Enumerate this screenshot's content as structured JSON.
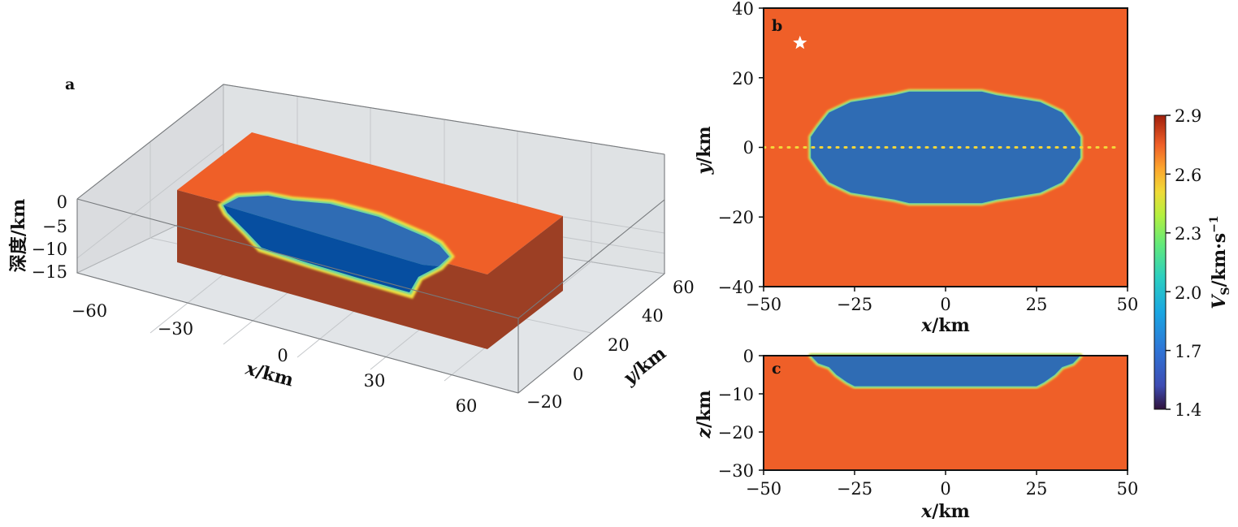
{
  "chart_data": [
    {
      "panel": "a",
      "type": "surface-3d",
      "panel_label": "a",
      "xlabel": {
        "var": "x",
        "unit": "/km"
      },
      "ylabel": {
        "var": "y",
        "unit": "/km"
      },
      "zlabel": "深度/km",
      "xlim": [
        -60,
        60
      ],
      "ylim": [
        -20,
        60
      ],
      "zlim": [
        -15,
        0
      ],
      "xticks": [
        -60,
        -30,
        0,
        30,
        60
      ],
      "yticks": [
        -20,
        0,
        20,
        40,
        60
      ],
      "zticks": [
        0,
        -5,
        -10,
        -15
      ],
      "xtick_labels": [
        "−60",
        "−30",
        "0",
        "30",
        "60"
      ],
      "ytick_labels": [
        "−20",
        "0",
        "20",
        "40",
        "60"
      ],
      "ztick_labels": [
        "0",
        "−5",
        "−10",
        "−15"
      ],
      "grid": true
    },
    {
      "panel": "b",
      "type": "heatmap",
      "panel_label": "b",
      "xlabel": {
        "var": "x",
        "unit": "/km"
      },
      "ylabel": {
        "var": "y",
        "unit": "/km"
      },
      "xlim": [
        -50,
        50
      ],
      "ylim": [
        -40,
        40
      ],
      "xticks": [
        -50,
        -25,
        0,
        25,
        50
      ],
      "yticks": [
        -40,
        -20,
        0,
        20,
        40
      ],
      "xtick_labels": [
        "−50",
        "−25",
        "0",
        "25",
        "50"
      ],
      "ytick_labels": [
        "−40",
        "−20",
        "0",
        "20",
        "40"
      ],
      "background_vs": 2.8,
      "basin_vs": 1.75,
      "basin_outline_xy": [
        [
          -37,
          -3
        ],
        [
          -37,
          3
        ],
        [
          -35,
          6
        ],
        [
          -32,
          10
        ],
        [
          -26,
          13
        ],
        [
          -14,
          15
        ],
        [
          -10,
          16
        ],
        [
          10,
          16
        ],
        [
          14,
          15
        ],
        [
          26,
          13
        ],
        [
          32,
          10
        ],
        [
          35,
          6
        ],
        [
          37,
          3
        ],
        [
          37,
          -3
        ],
        [
          35,
          -6
        ],
        [
          32,
          -10
        ],
        [
          26,
          -13
        ],
        [
          14,
          -15
        ],
        [
          10,
          -16
        ],
        [
          -10,
          -16
        ],
        [
          -14,
          -15
        ],
        [
          -26,
          -13
        ],
        [
          -32,
          -10
        ],
        [
          -35,
          -6
        ]
      ],
      "star_marker": {
        "x": -40,
        "y": 30
      },
      "profile_line": {
        "y": 0,
        "x_from": -50,
        "x_to": 48
      }
    },
    {
      "panel": "c",
      "type": "heatmap",
      "panel_label": "c",
      "xlabel": {
        "var": "x",
        "unit": "/km"
      },
      "ylabel": {
        "var": "z",
        "unit": "/km"
      },
      "xlim": [
        -50,
        50
      ],
      "ylim": [
        -30,
        0
      ],
      "xticks": [
        -50,
        -25,
        0,
        25,
        50
      ],
      "yticks": [
        0,
        -10,
        -20,
        -30
      ],
      "xtick_labels": [
        "−50",
        "−25",
        "0",
        "25",
        "50"
      ],
      "ytick_labels": [
        "0",
        "−10",
        "−20",
        "−30"
      ],
      "background_vs": 2.8,
      "basin_vs": 1.75,
      "basin_profile_xz": [
        [
          -37,
          0
        ],
        [
          -35,
          -2
        ],
        [
          -32,
          -3
        ],
        [
          -30,
          -5
        ],
        [
          -27,
          -7
        ],
        [
          -25,
          -8
        ],
        [
          25,
          -8
        ],
        [
          27,
          -7
        ],
        [
          30,
          -5
        ],
        [
          32,
          -3
        ],
        [
          35,
          -2
        ],
        [
          37,
          0
        ]
      ]
    }
  ],
  "colorbar": {
    "label_var": "V",
    "label_sub": "S",
    "label_unit": "/km·s",
    "label_exp": "−1",
    "range": [
      1.4,
      2.9
    ],
    "ticks": [
      1.4,
      1.7,
      2.0,
      2.3,
      2.6,
      2.9
    ],
    "tick_labels": [
      "1.4",
      "1.7",
      "2.0",
      "2.3",
      "2.6",
      "2.9"
    ],
    "colormap": "turbo"
  },
  "colors": {
    "background_fill": "#ef5f28",
    "basin_fill": "#2f6cb4",
    "basin_deep": "#064ea0",
    "side_wall": "#9c3f24",
    "rim": "#f2e23c",
    "profile_line": "#f4d63a",
    "star": "#ffffff"
  }
}
